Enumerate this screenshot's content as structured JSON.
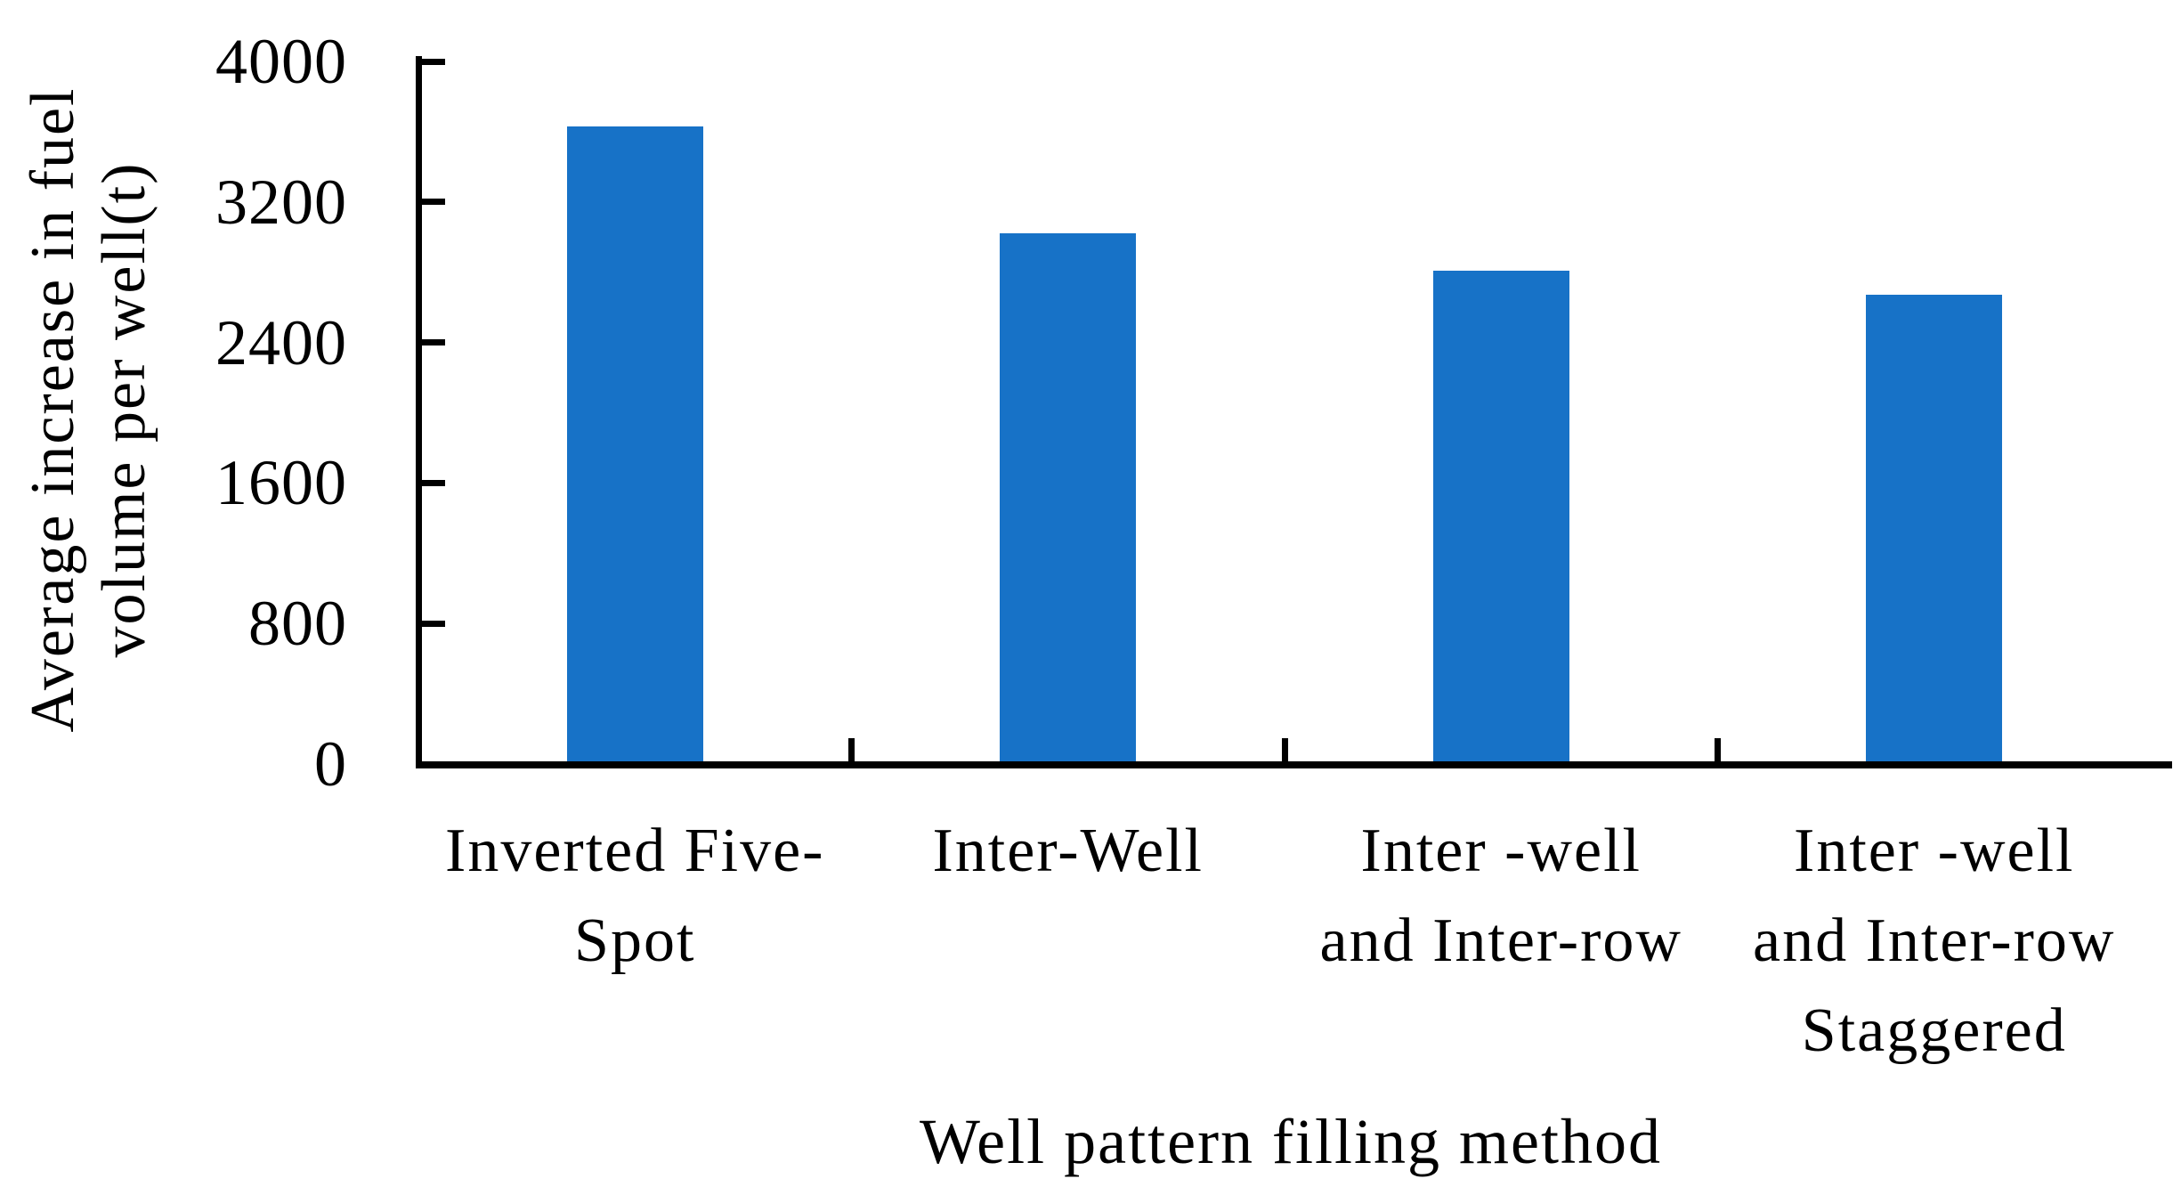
{
  "chart_data": {
    "type": "bar",
    "title": "",
    "xlabel": "Well pattern filling method",
    "ylabel": "Average increase in fuel volume per well(t)",
    "ylabel_lines": [
      "Average increase in fuel",
      "volume per well(t)"
    ],
    "categories": [
      "Inverted Five-Spot",
      "Inter-Well",
      "Inter -well and Inter-row",
      "Inter -well and Inter-row Staggered"
    ],
    "category_label_lines": [
      [
        "Inverted Five-",
        "Spot"
      ],
      [
        "Inter-Well"
      ],
      [
        "Inter -well",
        "and Inter-row"
      ],
      [
        "Inter -well",
        "and Inter-row",
        "Staggered"
      ]
    ],
    "values": [
      3630,
      3020,
      2810,
      2670
    ],
    "yticks": [
      0,
      800,
      1600,
      2400,
      3200,
      4000
    ],
    "ylim": [
      0,
      4000
    ],
    "bar_color": "#1772C7",
    "axis_color": "#000000",
    "grid": false,
    "legend": null
  }
}
